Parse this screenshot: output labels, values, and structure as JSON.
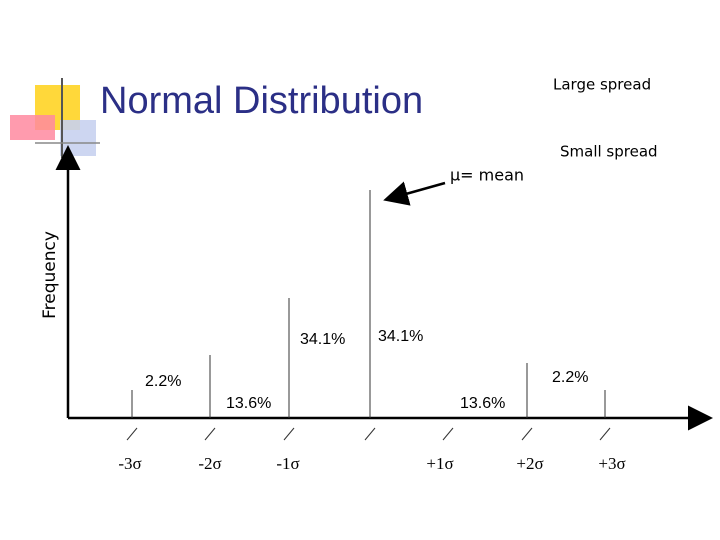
{
  "title": "Normal Distribution",
  "labels": {
    "large_spread": "Large spread",
    "small_spread": "Small spread",
    "mean": "μ= mean",
    "y_axis": "Frequency"
  },
  "percentages": [
    "2.2%",
    "13.6%",
    "34.1%",
    "34.1%",
    "13.6%",
    "2.2%"
  ],
  "sigma_labels": [
    "-3σ",
    "-2σ",
    "-1σ",
    "+1σ",
    "+2σ",
    "+3σ"
  ]
}
